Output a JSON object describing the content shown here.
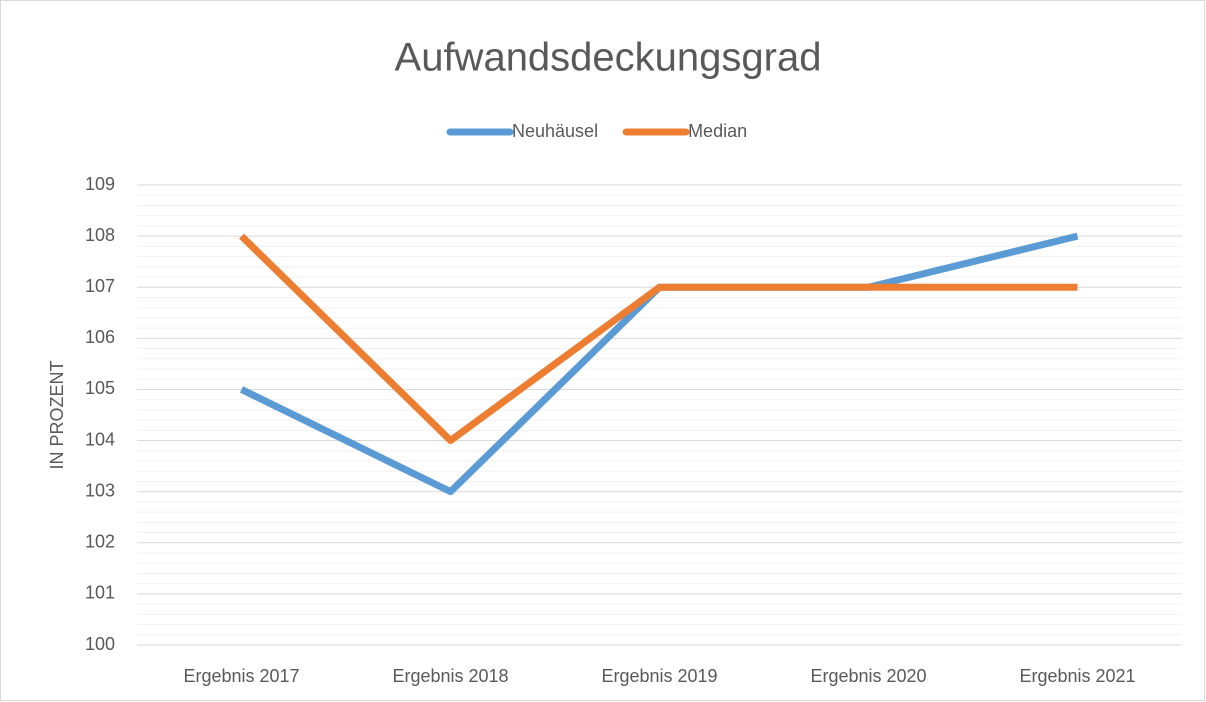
{
  "chart_data": {
    "type": "line",
    "title": "Aufwandsdeckungsgrad",
    "y_label": "IN PROZENT",
    "categories": [
      "Ergebnis 2017",
      "Ergebnis 2018",
      "Ergebnis 2019",
      "Ergebnis 2020",
      "Ergebnis 2021"
    ],
    "series": [
      {
        "name": "Neuhäusel",
        "color": "#5b9bd5",
        "values": [
          105,
          103,
          107,
          107,
          108
        ]
      },
      {
        "name": "Median",
        "color": "#ed7d31",
        "values": [
          108,
          104,
          107,
          107,
          107
        ]
      }
    ],
    "ylim": [
      100,
      109
    ],
    "yticks": [
      100,
      101,
      102,
      103,
      104,
      105,
      106,
      107,
      108,
      109
    ],
    "grid": true,
    "legend": "top"
  }
}
